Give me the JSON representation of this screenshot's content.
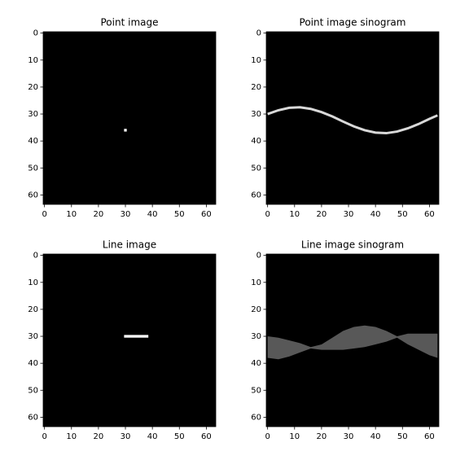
{
  "chart_data": [
    {
      "type": "point",
      "title": "Point image",
      "color": "#ffffff",
      "x": [
        30
      ],
      "values": [
        36
      ],
      "xlim": [
        -0.5,
        63.5
      ],
      "ylim": [
        63.5,
        -0.5
      ],
      "xticks": [
        0,
        10,
        20,
        30,
        40,
        50,
        60
      ],
      "yticks": [
        0,
        10,
        20,
        30,
        40,
        50,
        60
      ]
    },
    {
      "type": "line",
      "title": "Point image sinogram",
      "color": "#ffffff",
      "x": [
        0,
        4,
        8,
        12,
        16,
        20,
        24,
        28,
        32,
        36,
        40,
        44,
        48,
        52,
        56,
        60,
        63
      ],
      "values": [
        30.0,
        28.6,
        27.7,
        27.5,
        28.1,
        29.3,
        30.9,
        32.8,
        34.6,
        36.0,
        36.9,
        37.1,
        36.5,
        35.3,
        33.7,
        31.8,
        30.5
      ],
      "xlim": [
        -0.5,
        63.5
      ],
      "ylim": [
        63.5,
        -0.5
      ],
      "xticks": [
        0,
        10,
        20,
        30,
        40,
        50,
        60
      ],
      "yticks": [
        0,
        10,
        20,
        30,
        40,
        50,
        60
      ]
    },
    {
      "type": "segment",
      "title": "Line image",
      "color": "#ffffff",
      "x": [
        30,
        38
      ],
      "values": [
        30,
        30
      ],
      "xlim": [
        -0.5,
        63.5
      ],
      "ylim": [
        63.5,
        -0.5
      ],
      "xticks": [
        0,
        10,
        20,
        30,
        40,
        50,
        60
      ],
      "yticks": [
        0,
        10,
        20,
        30,
        40,
        50,
        60
      ]
    },
    {
      "type": "area",
      "title": "Line image sinogram",
      "color": "#6e6e6e",
      "x": [
        0,
        4,
        8,
        12,
        16,
        20,
        24,
        28,
        32,
        36,
        40,
        44,
        48,
        52,
        56,
        60,
        63
      ],
      "series": [
        {
          "values": [
            30,
            30.5,
            31.5,
            32.5,
            34,
            33,
            30.5,
            28,
            26.5,
            26,
            26.5,
            28,
            30,
            29,
            29,
            29,
            29
          ]
        },
        {
          "values": [
            38,
            38.5,
            37.5,
            36,
            34.5,
            35,
            35,
            35,
            34.5,
            34,
            33,
            32,
            30.5,
            33,
            35,
            37,
            38
          ]
        }
      ],
      "xlim": [
        -0.5,
        63.5
      ],
      "ylim": [
        63.5,
        -0.5
      ],
      "xticks": [
        0,
        10,
        20,
        30,
        40,
        50,
        60
      ],
      "yticks": [
        0,
        10,
        20,
        30,
        40,
        50,
        60
      ]
    }
  ]
}
